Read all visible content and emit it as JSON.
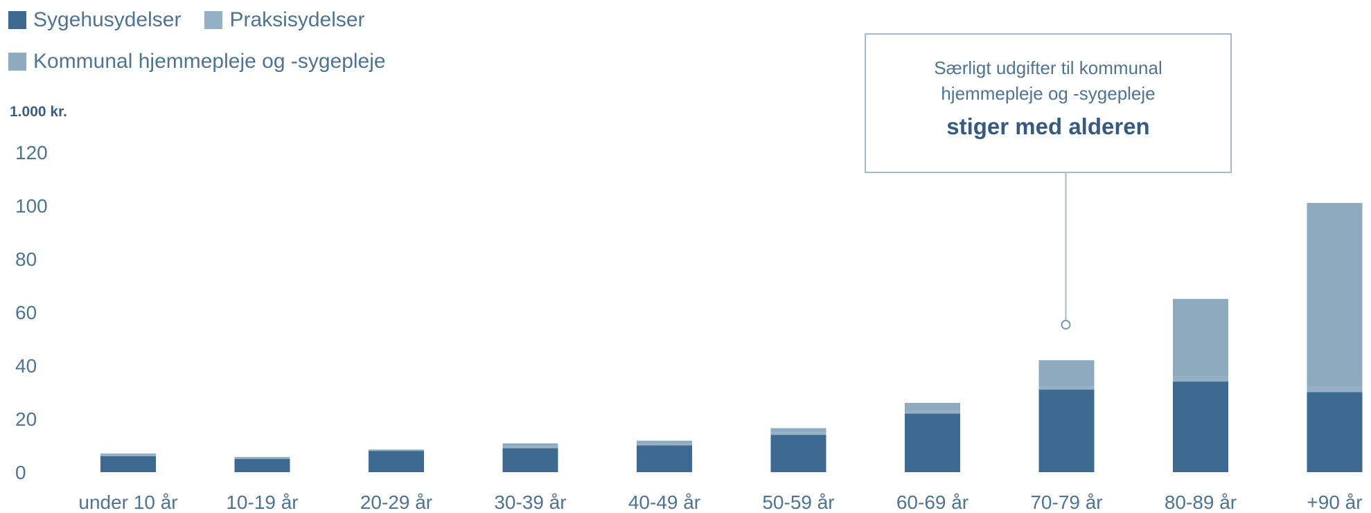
{
  "chart_data": {
    "type": "bar",
    "stacked": true,
    "unit_label": "1.000 kr.",
    "categories": [
      "under 10 år",
      "10-19 år",
      "20-29 år",
      "30-39 år",
      "40-49 år",
      "50-59 år",
      "60-69 år",
      "70-79 år",
      "80-89 år",
      "+90 år"
    ],
    "series": [
      {
        "name": "Sygehusydelser",
        "color": "#3e6a92",
        "values": [
          6,
          5,
          8,
          9,
          10,
          14,
          22,
          31,
          34,
          30
        ]
      },
      {
        "name": "Praksisydelser",
        "color": "#93b0c4",
        "values": [
          1,
          0.7,
          0.5,
          0.8,
          0.8,
          1,
          1,
          1,
          2,
          2
        ]
      },
      {
        "name": "Kommunal hjemmepleje og -sygepleje",
        "color": "#8eaabf",
        "values": [
          0,
          0,
          0,
          1,
          1,
          1.5,
          3,
          10,
          29,
          69
        ]
      }
    ],
    "legend": {
      "row1": [
        "Sygehusydelser",
        "Praksisydelser"
      ],
      "row2": [
        "Kommunal hjemmepleje og -sygepleje"
      ],
      "placement": "top-left"
    },
    "y_ticks": [
      0,
      20,
      40,
      60,
      80,
      100,
      120
    ],
    "ylim": [
      0,
      120
    ],
    "grid": false,
    "annotation": {
      "line1": "Særligt udgifter til kommunal",
      "line2": "hjemmepleje og -sygepleje",
      "emphasis": "stiger med alderen",
      "target_category": "70-79 år"
    }
  }
}
